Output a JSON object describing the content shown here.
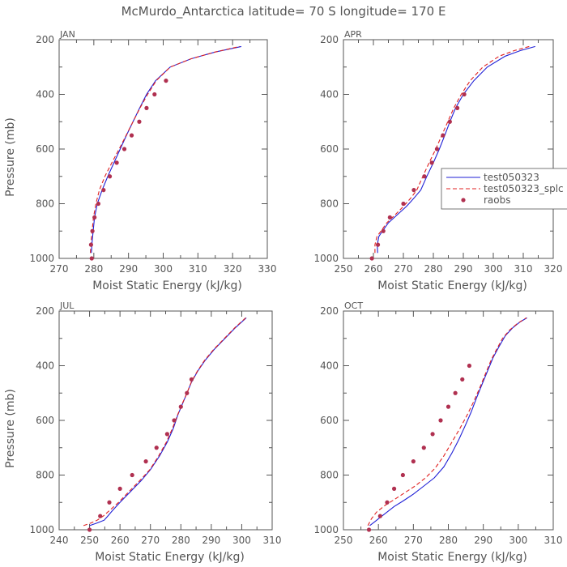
{
  "title": "McMurdo_Antarctica  latitude= 70 S longitude= 170 E",
  "colors": {
    "axis": "#555555",
    "series1": "#1f1fd6",
    "series2": "#e02020",
    "obs": "#b03050"
  },
  "chart_data": [
    {
      "panel": "JAN",
      "type": "line",
      "xlabel": "Moist Static Energy (kJ/kg)",
      "ylabel": "Pressure (mb)",
      "xlim": [
        270,
        330
      ],
      "ylim": [
        1000,
        200
      ],
      "xticks": [
        270,
        280,
        290,
        300,
        310,
        320,
        330
      ],
      "yticks": [
        200,
        400,
        600,
        800,
        1000
      ],
      "legend": null,
      "series": [
        {
          "name": "test050323",
          "style": "solid",
          "points": [
            [
              279.3,
              980
            ],
            [
              279.5,
              940
            ],
            [
              279.8,
              900
            ],
            [
              280.2,
              850
            ],
            [
              281,
              800
            ],
            [
              282.4,
              750
            ],
            [
              284,
              700
            ],
            [
              285.8,
              650
            ],
            [
              287.6,
              600
            ],
            [
              289.4,
              550
            ],
            [
              291.3,
              500
            ],
            [
              293.2,
              450
            ],
            [
              295.2,
              400
            ],
            [
              297.8,
              350
            ],
            [
              302,
              300
            ],
            [
              308,
              270
            ],
            [
              315,
              245
            ],
            [
              322.5,
              225
            ]
          ]
        },
        {
          "name": "test050323_splc",
          "style": "dashed",
          "points": [
            [
              279,
              980
            ],
            [
              279.2,
              940
            ],
            [
              279.5,
              900
            ],
            [
              279.9,
              850
            ],
            [
              280.6,
              800
            ],
            [
              281.6,
              750
            ],
            [
              283.2,
              700
            ],
            [
              285.2,
              650
            ],
            [
              287.3,
              600
            ],
            [
              289.3,
              550
            ],
            [
              291.3,
              500
            ],
            [
              293.3,
              450
            ],
            [
              295.5,
              400
            ],
            [
              298,
              350
            ],
            [
              302,
              300
            ],
            [
              308,
              270
            ],
            [
              315,
              245
            ],
            [
              322,
              225
            ]
          ]
        }
      ],
      "obs": {
        "name": "raobs",
        "points": [
          [
            279.4,
            1000
          ],
          [
            279.2,
            950
          ],
          [
            279.6,
            900
          ],
          [
            280.2,
            850
          ],
          [
            281.3,
            800
          ],
          [
            282.8,
            750
          ],
          [
            284.6,
            700
          ],
          [
            286.6,
            650
          ],
          [
            288.8,
            600
          ],
          [
            290.9,
            550
          ],
          [
            293.1,
            500
          ],
          [
            295.2,
            450
          ],
          [
            297.5,
            400
          ],
          [
            300.8,
            350
          ]
        ]
      }
    },
    {
      "panel": "APR",
      "type": "line",
      "xlabel": "Moist Static Energy (kJ/kg)",
      "ylabel": "",
      "xlim": [
        250,
        320
      ],
      "ylim": [
        1000,
        200
      ],
      "xticks": [
        250,
        260,
        270,
        280,
        290,
        300,
        310,
        320
      ],
      "yticks": [
        200,
        400,
        600,
        800,
        1000
      ],
      "legend": "right",
      "series": [
        {
          "name": "test050323",
          "style": "solid",
          "points": [
            [
              261.4,
              980
            ],
            [
              261.3,
              950
            ],
            [
              261.8,
              920
            ],
            [
              263,
              900
            ],
            [
              265,
              870
            ],
            [
              268,
              840
            ],
            [
              271,
              810
            ],
            [
              273.5,
              780
            ],
            [
              275.8,
              750
            ],
            [
              277.8,
              700
            ],
            [
              280,
              650
            ],
            [
              282,
              600
            ],
            [
              283.8,
              550
            ],
            [
              285.5,
              500
            ],
            [
              287.4,
              450
            ],
            [
              290,
              400
            ],
            [
              293.5,
              350
            ],
            [
              298,
              300
            ],
            [
              304,
              260
            ],
            [
              309,
              240
            ],
            [
              314,
              225
            ]
          ]
        },
        {
          "name": "test050323_splc",
          "style": "dashed",
          "points": [
            [
              260.5,
              980
            ],
            [
              260.5,
              950
            ],
            [
              261.2,
              920
            ],
            [
              262.5,
              900
            ],
            [
              264.5,
              870
            ],
            [
              267.3,
              840
            ],
            [
              270,
              810
            ],
            [
              272.4,
              780
            ],
            [
              274.5,
              750
            ],
            [
              276.5,
              700
            ],
            [
              278.6,
              650
            ],
            [
              280.8,
              600
            ],
            [
              282.8,
              550
            ],
            [
              284.8,
              500
            ],
            [
              286.8,
              450
            ],
            [
              289.3,
              400
            ],
            [
              292.3,
              350
            ],
            [
              296.5,
              300
            ],
            [
              302,
              260
            ],
            [
              307,
              240
            ],
            [
              312,
              225
            ]
          ]
        }
      ],
      "obs": {
        "name": "raobs",
        "points": [
          [
            259.5,
            1000
          ],
          [
            261.5,
            950
          ],
          [
            263.3,
            900
          ],
          [
            265.5,
            850
          ],
          [
            270,
            800
          ],
          [
            273.5,
            750
          ],
          [
            277,
            700
          ],
          [
            279.5,
            650
          ],
          [
            281.2,
            600
          ],
          [
            283.2,
            550
          ],
          [
            285.5,
            500
          ],
          [
            288,
            450
          ],
          [
            290.3,
            400
          ]
        ]
      }
    },
    {
      "panel": "JUL",
      "type": "line",
      "xlabel": "Moist Static Energy (kJ/kg)",
      "ylabel": "Pressure (mb)",
      "xlim": [
        240,
        310
      ],
      "ylim": [
        1000,
        200
      ],
      "xticks": [
        240,
        250,
        260,
        270,
        280,
        290,
        300,
        310
      ],
      "yticks": [
        200,
        400,
        600,
        800,
        1000
      ],
      "legend": null,
      "series": [
        {
          "name": "test050323",
          "style": "solid",
          "points": [
            [
              250,
              985
            ],
            [
              252.5,
              975
            ],
            [
              254.8,
              965
            ],
            [
              256,
              950
            ],
            [
              257.5,
              930
            ],
            [
              260,
              900
            ],
            [
              263.5,
              860
            ],
            [
              267,
              820
            ],
            [
              270,
              780
            ],
            [
              273,
              730
            ],
            [
              275.5,
              680
            ],
            [
              277.5,
              630
            ],
            [
              279,
              580
            ],
            [
              280.5,
              540
            ],
            [
              282,
              500
            ],
            [
              283.5,
              460
            ],
            [
              285.5,
              420
            ],
            [
              288,
              380
            ],
            [
              291,
              340
            ],
            [
              294.5,
              300
            ],
            [
              298,
              260
            ],
            [
              301.5,
              225
            ]
          ]
        },
        {
          "name": "test050323_splc",
          "style": "dashed",
          "points": [
            [
              248,
              985
            ],
            [
              250.5,
              975
            ],
            [
              252.5,
              965
            ],
            [
              254.5,
              950
            ],
            [
              256.5,
              930
            ],
            [
              259.5,
              900
            ],
            [
              263,
              860
            ],
            [
              266.5,
              820
            ],
            [
              269.8,
              780
            ],
            [
              272.7,
              730
            ],
            [
              275.2,
              680
            ],
            [
              277.2,
              630
            ],
            [
              278.9,
              580
            ],
            [
              280.4,
              540
            ],
            [
              282,
              500
            ],
            [
              283.4,
              460
            ],
            [
              285.4,
              420
            ],
            [
              287.8,
              380
            ],
            [
              290.8,
              340
            ],
            [
              294.3,
              300
            ],
            [
              297.8,
              260
            ],
            [
              301.3,
              225
            ]
          ]
        }
      ],
      "obs": {
        "name": "raobs",
        "points": [
          [
            250,
            1000
          ],
          [
            253.5,
            950
          ],
          [
            256.5,
            900
          ],
          [
            260,
            850
          ],
          [
            264,
            800
          ],
          [
            268.5,
            750
          ],
          [
            272,
            700
          ],
          [
            275.5,
            650
          ],
          [
            277.8,
            600
          ],
          [
            280,
            550
          ],
          [
            282,
            500
          ],
          [
            283.5,
            450
          ]
        ]
      }
    },
    {
      "panel": "OCT",
      "type": "line",
      "xlabel": "Moist Static Energy (kJ/kg)",
      "ylabel": "",
      "xlim": [
        250,
        310
      ],
      "ylim": [
        1000,
        200
      ],
      "xticks": [
        250,
        260,
        270,
        280,
        290,
        300,
        310
      ],
      "yticks": [
        200,
        400,
        600,
        800,
        1000
      ],
      "legend": null,
      "series": [
        {
          "name": "test050323",
          "style": "solid",
          "points": [
            [
              257.5,
              985
            ],
            [
              259,
              970
            ],
            [
              260.5,
              955
            ],
            [
              262.5,
              935
            ],
            [
              264.5,
              915
            ],
            [
              267,
              895
            ],
            [
              270,
              870
            ],
            [
              273,
              840
            ],
            [
              276,
              810
            ],
            [
              278.7,
              770
            ],
            [
              281,
              720
            ],
            [
              283,
              670
            ],
            [
              284.8,
              620
            ],
            [
              286.5,
              570
            ],
            [
              288,
              520
            ],
            [
              289.6,
              470
            ],
            [
              291.2,
              420
            ],
            [
              292.8,
              370
            ],
            [
              294.5,
              330
            ],
            [
              296.3,
              290
            ],
            [
              298.5,
              260
            ],
            [
              300.5,
              240
            ],
            [
              302.5,
              225
            ]
          ]
        },
        {
          "name": "test050323_splc",
          "style": "dashed",
          "points": [
            [
              257,
              985
            ],
            [
              258,
              960
            ],
            [
              259.5,
              935
            ],
            [
              262,
              910
            ],
            [
              264.5,
              890
            ],
            [
              267.5,
              865
            ],
            [
              270.5,
              840
            ],
            [
              273.5,
              810
            ],
            [
              276.2,
              775
            ],
            [
              278.7,
              730
            ],
            [
              281,
              680
            ],
            [
              283.3,
              630
            ],
            [
              285.4,
              580
            ],
            [
              287.3,
              530
            ],
            [
              289,
              480
            ],
            [
              290.6,
              430
            ],
            [
              292.2,
              380
            ],
            [
              293.8,
              340
            ],
            [
              295.5,
              300
            ],
            [
              297.5,
              270
            ],
            [
              299.8,
              245
            ],
            [
              302.3,
              225
            ]
          ]
        }
      ],
      "obs": {
        "name": "raobs",
        "points": [
          [
            257.3,
            1000
          ],
          [
            260.5,
            950
          ],
          [
            262.5,
            900
          ],
          [
            264.5,
            850
          ],
          [
            267,
            800
          ],
          [
            270,
            750
          ],
          [
            273,
            700
          ],
          [
            275.5,
            650
          ],
          [
            277.8,
            600
          ],
          [
            280,
            550
          ],
          [
            282,
            500
          ],
          [
            284,
            450
          ],
          [
            286,
            400
          ]
        ]
      }
    }
  ]
}
